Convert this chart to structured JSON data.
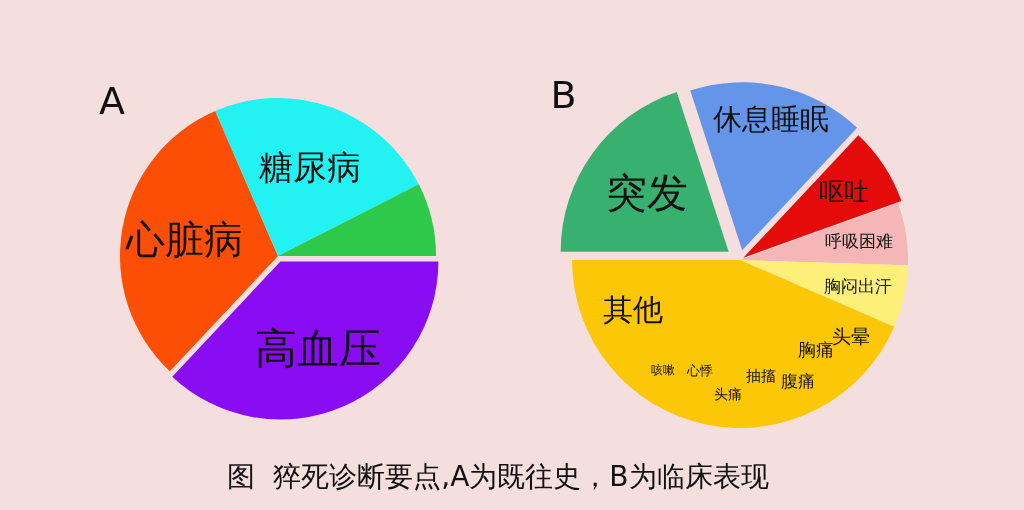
{
  "chart_data": [
    {
      "type": "pie",
      "title": "A",
      "categories": [
        "高血压",
        "心脏病",
        "糖尿病",
        null
      ],
      "values": [
        37,
        31.5,
        24,
        7.5
      ],
      "colors": [
        "#8a0cf2",
        "#fc4e04",
        "#22f2f2",
        "#2ec94a"
      ]
    },
    {
      "type": "pie",
      "title": "B",
      "categories": [
        "突发",
        "休息睡眠",
        "呕吐",
        "呼吸困难",
        "胸闷出汗",
        "其他"
      ],
      "values": [
        20,
        17,
        7.5,
        6,
        6,
        43.5
      ],
      "colors": [
        "#38b06f",
        "#6495e8",
        "#e60b0b",
        "#f4b6b6",
        "#fdf07a",
        "#fcc707"
      ],
      "annotations": [
        {
          "text": "头晕",
          "x": "其他"
        },
        {
          "text": "胸痛",
          "x": "其他"
        },
        {
          "text": "腹痛",
          "x": "其他"
        },
        {
          "text": "抽搐",
          "x": "其他"
        },
        {
          "text": "头痛",
          "x": "其他"
        },
        {
          "text": "心悸",
          "x": "其他"
        },
        {
          "text": "咳嗽",
          "x": "其他"
        },
        "图  猝死诊断要点,A为既往史，B为临床表现"
      ]
    }
  ]
}
